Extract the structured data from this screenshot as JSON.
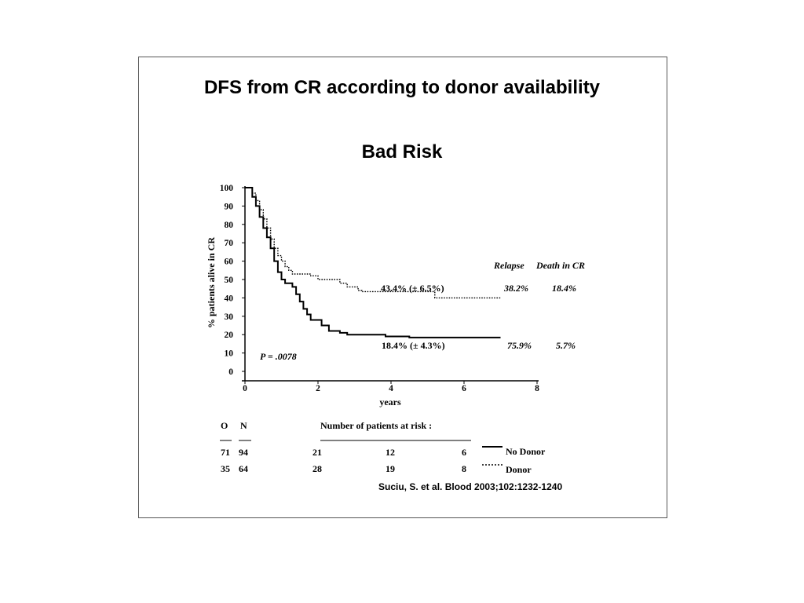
{
  "slide": {
    "title": "DFS from CR according to donor availability",
    "subtitle": "Bad Risk",
    "citation": "Suciu, S. et al. Blood 2003;102:1232-1240"
  },
  "chart_data": {
    "type": "line",
    "xlabel": "years",
    "ylabel": "% patients alive in CR",
    "xlim": [
      0,
      8
    ],
    "ylim": [
      0,
      100
    ],
    "x_ticks": [
      "0",
      "2",
      "4",
      "6",
      "8"
    ],
    "y_ticks": [
      "0",
      "10",
      "20",
      "30",
      "40",
      "50",
      "60",
      "70",
      "80",
      "90",
      "100"
    ],
    "pvalue": "P = .0078",
    "header_relapse": "Relapse",
    "header_death": "Death in CR",
    "series": [
      {
        "name": "Donor",
        "style": "dotted",
        "color": "#000000",
        "label": "43.4% (± 6.5%)",
        "relapse": "38.2%",
        "death": "18.4%",
        "points": [
          [
            0,
            100
          ],
          [
            0.15,
            100
          ],
          [
            0.2,
            97
          ],
          [
            0.3,
            93
          ],
          [
            0.4,
            88
          ],
          [
            0.5,
            83
          ],
          [
            0.6,
            78
          ],
          [
            0.7,
            72
          ],
          [
            0.8,
            67
          ],
          [
            0.9,
            63
          ],
          [
            1.0,
            60
          ],
          [
            1.1,
            57
          ],
          [
            1.2,
            55
          ],
          [
            1.3,
            53
          ],
          [
            1.6,
            53
          ],
          [
            1.8,
            52
          ],
          [
            2.0,
            50
          ],
          [
            2.6,
            48
          ],
          [
            2.8,
            46
          ],
          [
            3.1,
            44
          ],
          [
            3.2,
            43.4
          ],
          [
            5.0,
            43.4
          ],
          [
            5.2,
            40
          ],
          [
            7.0,
            40
          ]
        ]
      },
      {
        "name": "No Donor",
        "style": "solid",
        "color": "#000000",
        "label": "18.4% (± 4.3%)",
        "relapse": "75.9%",
        "death": "5.7%",
        "points": [
          [
            0,
            100
          ],
          [
            0.15,
            100
          ],
          [
            0.2,
            95
          ],
          [
            0.3,
            90
          ],
          [
            0.4,
            84
          ],
          [
            0.5,
            78
          ],
          [
            0.6,
            73
          ],
          [
            0.7,
            67
          ],
          [
            0.8,
            60
          ],
          [
            0.9,
            54
          ],
          [
            1.0,
            50
          ],
          [
            1.1,
            48
          ],
          [
            1.3,
            46
          ],
          [
            1.4,
            42
          ],
          [
            1.5,
            38
          ],
          [
            1.6,
            34
          ],
          [
            1.7,
            31
          ],
          [
            1.8,
            28
          ],
          [
            2.0,
            28
          ],
          [
            2.1,
            25
          ],
          [
            2.3,
            22
          ],
          [
            2.6,
            21
          ],
          [
            2.8,
            20
          ],
          [
            3.8,
            20
          ],
          [
            3.85,
            19
          ],
          [
            4.5,
            18.4
          ],
          [
            7.0,
            18.4
          ]
        ]
      }
    ],
    "risk_table": {
      "col_o": "O",
      "col_n": "N",
      "heading": "Number of patients at risk :",
      "rows": [
        {
          "name": "No Donor",
          "o": "71",
          "n": "94",
          "at_risk": [
            "21",
            "12",
            "6"
          ],
          "style": "solid"
        },
        {
          "name": "Donor",
          "o": "35",
          "n": "64",
          "at_risk": [
            "28",
            "19",
            "8"
          ],
          "style": "dotted"
        }
      ]
    }
  }
}
